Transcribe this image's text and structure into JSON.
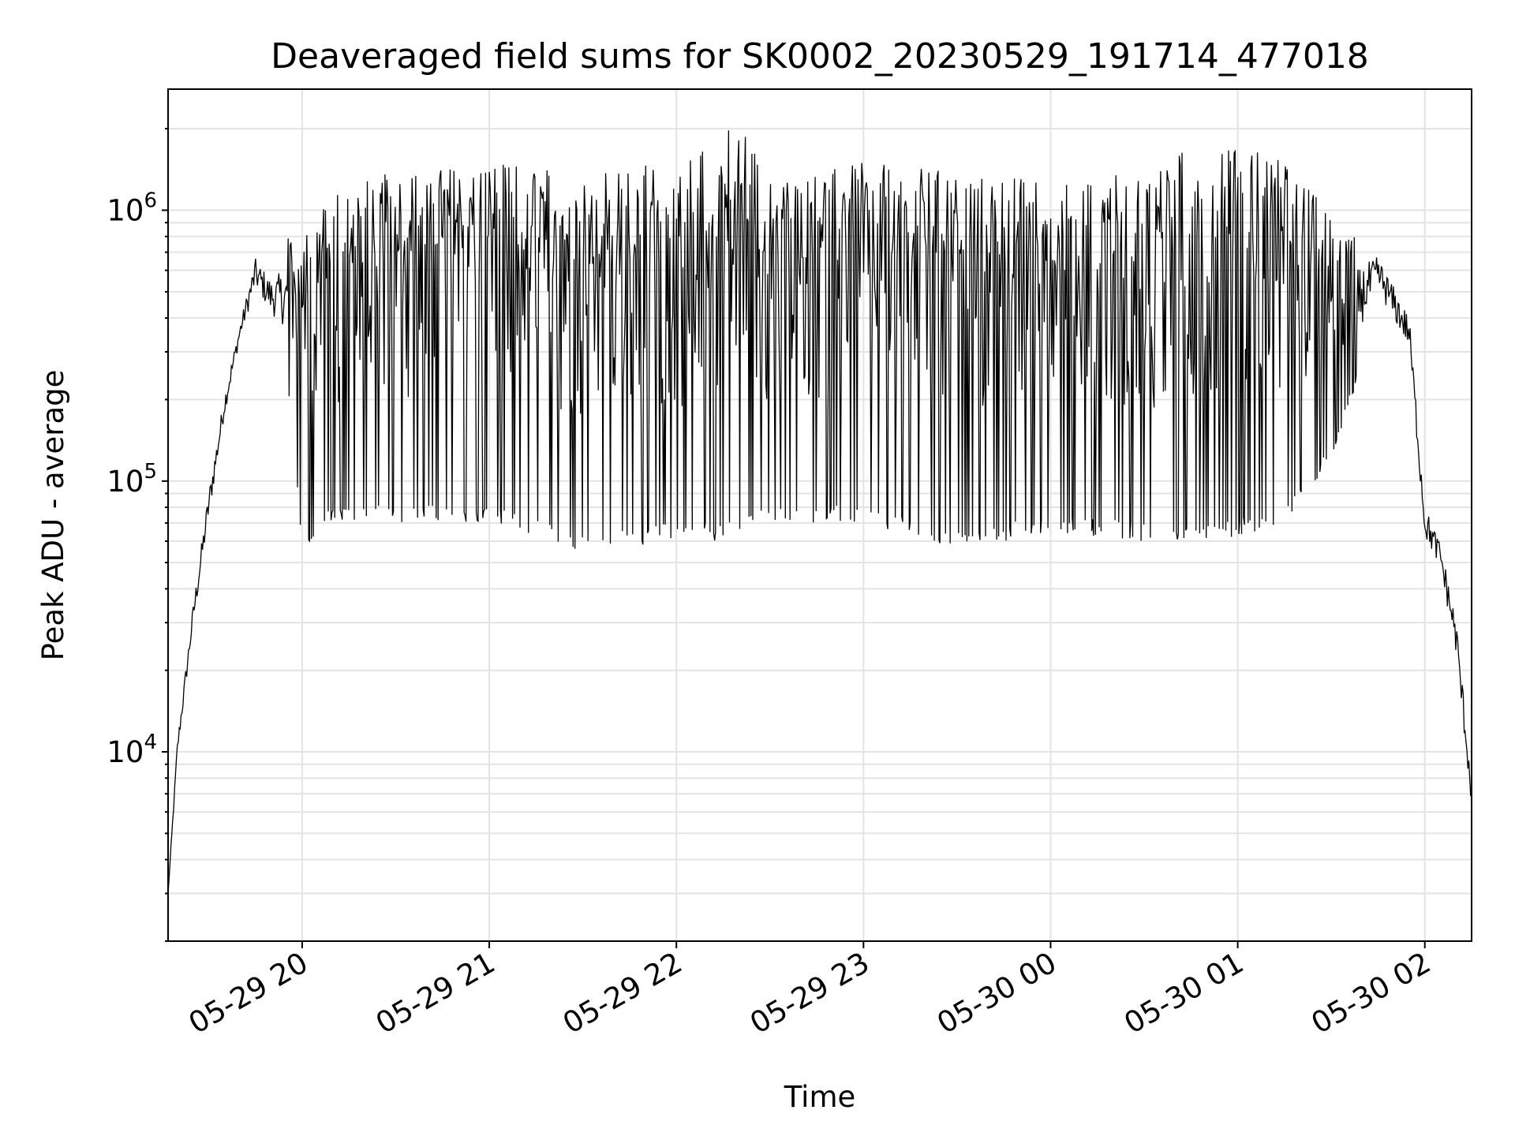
{
  "chart_data": {
    "type": "line",
    "title": "Deaveraged field sums for SK0002_20230529_191714_477018",
    "xlabel": "Time",
    "ylabel": "Peak ADU - average",
    "yscale": "log",
    "grid": true,
    "xlim": [
      "2023-05-29 19:17",
      "2023-05-30 02:15"
    ],
    "ylim": [
      2000,
      2800000
    ],
    "x_ticks": [
      "05-29 20",
      "05-29 21",
      "05-29 22",
      "05-29 23",
      "05-30 00",
      "05-30 01",
      "05-30 02"
    ],
    "y_ticks": [
      {
        "base": "10",
        "exp": "4",
        "value": 10000
      },
      {
        "base": "10",
        "exp": "5",
        "value": 100000
      },
      {
        "base": "10",
        "exp": "6",
        "value": 1000000
      }
    ],
    "line_color": "#000000",
    "series": [
      {
        "description": "single black trace; signal rises from ~3e3 to ~5e5 by 19:45, dips near 20:00, then oscillates rapidly between ~7e4 and ~1.5e6 until ~01:45, then decays to ~5e3 at 02:15",
        "envelope": [
          {
            "x": "2023-05-29 19:17",
            "low": 3000,
            "high": 3000
          },
          {
            "x": "2023-05-29 19:20",
            "low": 9000,
            "high": 12000
          },
          {
            "x": "2023-05-29 19:25",
            "low": 25000,
            "high": 40000
          },
          {
            "x": "2023-05-29 19:30",
            "low": 60000,
            "high": 110000
          },
          {
            "x": "2023-05-29 19:35",
            "low": 150000,
            "high": 240000
          },
          {
            "x": "2023-05-29 19:40",
            "low": 300000,
            "high": 420000
          },
          {
            "x": "2023-05-29 19:45",
            "low": 430000,
            "high": 800000
          },
          {
            "x": "2023-05-29 19:50",
            "low": 330000,
            "high": 700000
          },
          {
            "x": "2023-05-29 19:55",
            "low": 250000,
            "high": 900000
          },
          {
            "x": "2023-05-29 20:00",
            "low": 55000,
            "high": 800000
          },
          {
            "x": "2023-05-29 20:10",
            "low": 70000,
            "high": 1200000
          },
          {
            "x": "2023-05-29 20:30",
            "low": 70000,
            "high": 1400000
          },
          {
            "x": "2023-05-29 21:00",
            "low": 70000,
            "high": 1500000
          },
          {
            "x": "2023-05-29 21:30",
            "low": 55000,
            "high": 1400000
          },
          {
            "x": "2023-05-29 22:00",
            "low": 60000,
            "high": 1500000
          },
          {
            "x": "2023-05-29 22:20",
            "low": 60000,
            "high": 2150000
          },
          {
            "x": "2023-05-29 22:30",
            "low": 70000,
            "high": 1300000
          },
          {
            "x": "2023-05-29 23:00",
            "low": 70000,
            "high": 1500000
          },
          {
            "x": "2023-05-29 23:30",
            "low": 55000,
            "high": 1400000
          },
          {
            "x": "2023-05-30 00:00",
            "low": 65000,
            "high": 1300000
          },
          {
            "x": "2023-05-30 00:30",
            "low": 60000,
            "high": 1400000
          },
          {
            "x": "2023-05-30 00:55",
            "low": 60000,
            "high": 2000000
          },
          {
            "x": "2023-05-30 01:15",
            "low": 70000,
            "high": 1500000
          },
          {
            "x": "2023-05-30 01:30",
            "low": 120000,
            "high": 1000000
          },
          {
            "x": "2023-05-30 01:45",
            "low": 400000,
            "high": 850000
          },
          {
            "x": "2023-05-30 01:55",
            "low": 250000,
            "high": 500000
          },
          {
            "x": "2023-05-30 02:00",
            "low": 50000,
            "high": 100000
          },
          {
            "x": "2023-05-30 02:05",
            "low": 40000,
            "high": 70000
          },
          {
            "x": "2023-05-30 02:10",
            "low": 18000,
            "high": 40000
          },
          {
            "x": "2023-05-30 02:15",
            "low": 5000,
            "high": 10000
          }
        ]
      }
    ]
  }
}
